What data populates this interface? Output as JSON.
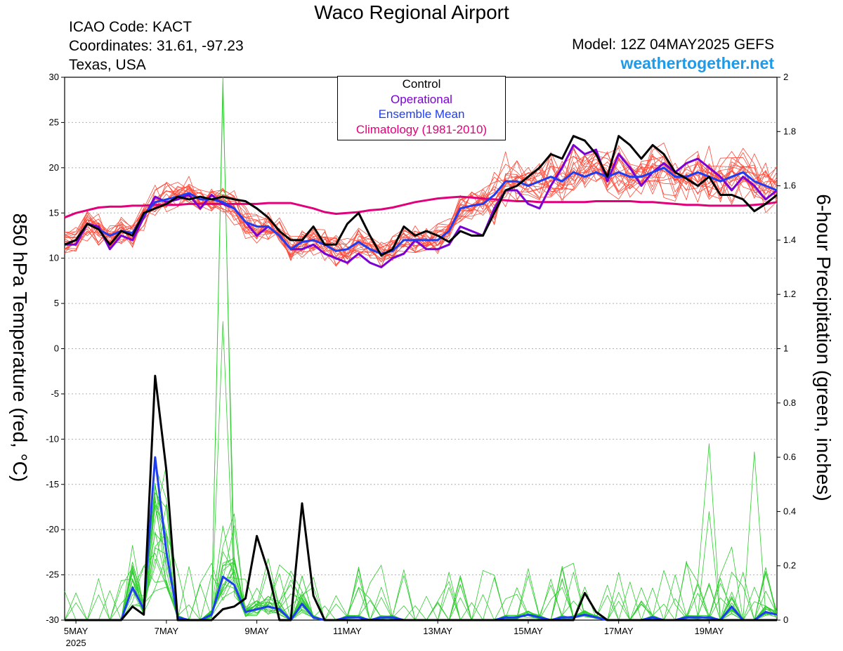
{
  "header": {
    "title": "Waco Regional Airport",
    "icao": "ICAO Code: KACT",
    "coordinates": "Coordinates: 31.61, -97.23",
    "region": "Texas, USA",
    "model": "Model: 12Z 04MAY2025 GEFS",
    "brand": "weathertogether.net"
  },
  "colors": {
    "control": "#000000",
    "operational": "#7a00d6",
    "ensemble_mean": "#1f3df0",
    "climatology": "#e0007a",
    "members_temp": "#ff4a3a",
    "members_precip": "#2ecc2e",
    "grid": "#b0b0b0"
  },
  "chart_data": {
    "type": "line",
    "ylabel_left": "850 hPa Temperature (red, °C)",
    "ylabel_right": "6-hour Precipitation (green, inches)",
    "ylim_left": [
      -30,
      30
    ],
    "ylim_right": [
      0,
      2
    ],
    "y_ticks_left": [
      30,
      25,
      20,
      15,
      10,
      5,
      0,
      -5,
      -10,
      -15,
      -20,
      -25,
      -30
    ],
    "y_ticks_right": [
      2,
      1.8,
      1.6,
      1.4,
      1.2,
      1,
      0.8,
      0.6,
      0.4,
      0.2,
      0
    ],
    "x_tick_labels": [
      "5MAY",
      "7MAY",
      "9MAY",
      "11MAY",
      "13MAY",
      "15MAY",
      "17MAY",
      "19MAY"
    ],
    "x_sub_label": "2025",
    "x_ticks_days": [
      5,
      7,
      9,
      11,
      13,
      15,
      17,
      19
    ],
    "xlim_days": [
      4.75,
      20.5
    ],
    "grid": "dotted horizontal",
    "legend": {
      "position": "top-center",
      "entries": [
        "Control",
        "Operational",
        "Ensemble Mean",
        "Climatology (1981-2010)"
      ]
    },
    "temperature": {
      "x_days": [
        4.75,
        5.0,
        5.25,
        5.5,
        5.75,
        6.0,
        6.25,
        6.5,
        6.75,
        7.0,
        7.25,
        7.5,
        7.75,
        8.0,
        8.25,
        8.5,
        8.75,
        9.0,
        9.25,
        9.5,
        9.75,
        10.0,
        10.25,
        10.5,
        10.75,
        11.0,
        11.25,
        11.5,
        11.75,
        12.0,
        12.25,
        12.5,
        12.75,
        13.0,
        13.25,
        13.5,
        13.75,
        14.0,
        14.25,
        14.5,
        14.75,
        15.0,
        15.25,
        15.5,
        15.75,
        16.0,
        16.25,
        16.5,
        16.75,
        17.0,
        17.25,
        17.5,
        17.75,
        18.0,
        18.25,
        18.5,
        18.75,
        19.0,
        19.25,
        19.5,
        19.75,
        20.0,
        20.25,
        20.5
      ],
      "control": [
        11.5,
        12.0,
        13.8,
        13.2,
        11.5,
        13.0,
        12.5,
        15.0,
        15.5,
        16.0,
        16.8,
        16.5,
        16.8,
        16.5,
        16.8,
        16.5,
        16.3,
        15.5,
        14.5,
        13.0,
        12.0,
        12.0,
        13.5,
        11.5,
        11.5,
        13.8,
        15.0,
        12.5,
        10.3,
        11.0,
        13.5,
        12.5,
        13.0,
        12.5,
        11.8,
        13.0,
        12.5,
        12.5,
        15.0,
        17.5,
        18.0,
        19.0,
        20.0,
        21.5,
        21.0,
        23.5,
        23.0,
        21.5,
        19.0,
        23.5,
        22.5,
        21.0,
        22.5,
        21.5,
        19.5,
        18.8,
        18.0,
        19.0,
        17.0,
        17.0,
        16.5,
        15.2,
        16.0,
        17.0
      ],
      "operational": [
        11.5,
        11.5,
        13.8,
        13.5,
        11.0,
        12.5,
        12.0,
        14.5,
        16.8,
        16.2,
        16.5,
        17.0,
        15.5,
        17.0,
        16.0,
        15.5,
        14.0,
        12.5,
        13.5,
        12.5,
        11.0,
        11.0,
        11.5,
        10.5,
        10.0,
        9.5,
        10.5,
        9.5,
        9.0,
        10.0,
        10.5,
        12.0,
        11.0,
        11.0,
        11.5,
        13.5,
        13.0,
        12.5,
        15.5,
        17.5,
        17.5,
        16.0,
        15.5,
        18.0,
        20.0,
        22.5,
        21.5,
        22.0,
        18.5,
        21.5,
        20.0,
        18.0,
        19.5,
        20.5,
        19.5,
        20.5,
        21.0,
        20.0,
        19.0,
        17.5,
        19.0,
        18.0,
        16.5,
        17.5
      ],
      "ensemble_mean": [
        11.5,
        12.0,
        13.8,
        13.2,
        12.5,
        13.0,
        12.8,
        14.8,
        16.2,
        16.5,
        16.8,
        17.2,
        16.5,
        16.5,
        16.2,
        15.5,
        14.0,
        13.5,
        13.5,
        12.5,
        11.0,
        11.8,
        12.0,
        11.5,
        10.8,
        11.0,
        11.8,
        11.0,
        10.5,
        10.8,
        12.0,
        12.0,
        12.0,
        12.0,
        13.0,
        15.5,
        15.8,
        16.0,
        17.0,
        18.5,
        18.5,
        18.0,
        18.5,
        19.0,
        18.5,
        19.5,
        19.0,
        19.5,
        19.0,
        19.5,
        19.0,
        19.0,
        19.5,
        20.0,
        19.0,
        19.0,
        19.5,
        19.0,
        18.5,
        19.0,
        19.5,
        18.5,
        18.0,
        17.5
      ],
      "climatology": [
        14.5,
        15.0,
        15.3,
        15.6,
        15.7,
        15.7,
        15.8,
        15.8,
        15.9,
        15.9,
        15.9,
        16.0,
        16.0,
        16.0,
        16.0,
        16.0,
        16.0,
        16.0,
        16.1,
        16.1,
        16.1,
        15.8,
        15.5,
        15.1,
        14.9,
        15.0,
        15.1,
        15.3,
        15.4,
        15.6,
        15.9,
        16.2,
        16.4,
        16.6,
        16.7,
        16.8,
        16.7,
        16.6,
        16.5,
        16.4,
        16.3,
        16.3,
        16.2,
        16.2,
        16.2,
        16.2,
        16.2,
        16.3,
        16.3,
        16.3,
        16.3,
        16.2,
        16.2,
        16.1,
        16.0,
        15.9,
        15.9,
        15.8,
        15.8,
        15.8,
        15.8,
        15.9,
        16.0,
        16.2
      ]
    },
    "precipitation": {
      "x_days": [
        4.75,
        5.0,
        5.25,
        5.5,
        5.75,
        6.0,
        6.25,
        6.5,
        6.75,
        7.0,
        7.25,
        7.5,
        7.75,
        8.0,
        8.25,
        8.5,
        8.75,
        9.0,
        9.25,
        9.5,
        9.75,
        10.0,
        10.25,
        10.5,
        10.75,
        11.0,
        11.25,
        11.5,
        11.75,
        12.0,
        12.25,
        12.5,
        12.75,
        13.0,
        13.25,
        13.5,
        13.75,
        14.0,
        14.25,
        14.5,
        14.75,
        15.0,
        15.25,
        15.5,
        15.75,
        16.0,
        16.25,
        16.5,
        16.75,
        17.0,
        17.25,
        17.5,
        17.75,
        18.0,
        18.25,
        18.5,
        18.75,
        19.0,
        19.25,
        19.5,
        19.75,
        20.0,
        20.25,
        20.5
      ],
      "control": [
        0,
        0,
        0,
        0,
        0,
        0,
        0.05,
        0.02,
        0.9,
        0.55,
        0,
        0,
        0,
        0,
        0.04,
        0.05,
        0.08,
        0.31,
        0.18,
        0,
        0,
        0.43,
        0.09,
        0,
        0,
        0,
        0,
        0,
        0,
        0,
        0,
        0,
        0,
        0,
        0,
        0,
        0,
        0,
        0,
        0,
        0,
        0,
        0,
        0,
        0,
        0,
        0.1,
        0.03,
        0,
        0,
        0,
        0,
        0,
        0,
        0,
        0,
        0,
        0,
        0,
        0,
        0,
        0,
        0,
        0
      ],
      "ensemble_mean": [
        0,
        0,
        0,
        0,
        0,
        0,
        0.12,
        0.04,
        0.6,
        0.25,
        0.01,
        0,
        0,
        0.02,
        0.16,
        0.13,
        0.03,
        0.04,
        0.05,
        0.04,
        0,
        0.06,
        0.01,
        0,
        0,
        0.01,
        0.01,
        0,
        0.01,
        0.01,
        0,
        0,
        0,
        0,
        0,
        0,
        0,
        0,
        0,
        0.01,
        0.01,
        0.02,
        0.01,
        0,
        0.01,
        0.01,
        0.02,
        0.01,
        0,
        0,
        0,
        0,
        0.01,
        0,
        0,
        0.01,
        0.01,
        0.01,
        0,
        0.05,
        0,
        0,
        0.03,
        0.02
      ]
    }
  }
}
